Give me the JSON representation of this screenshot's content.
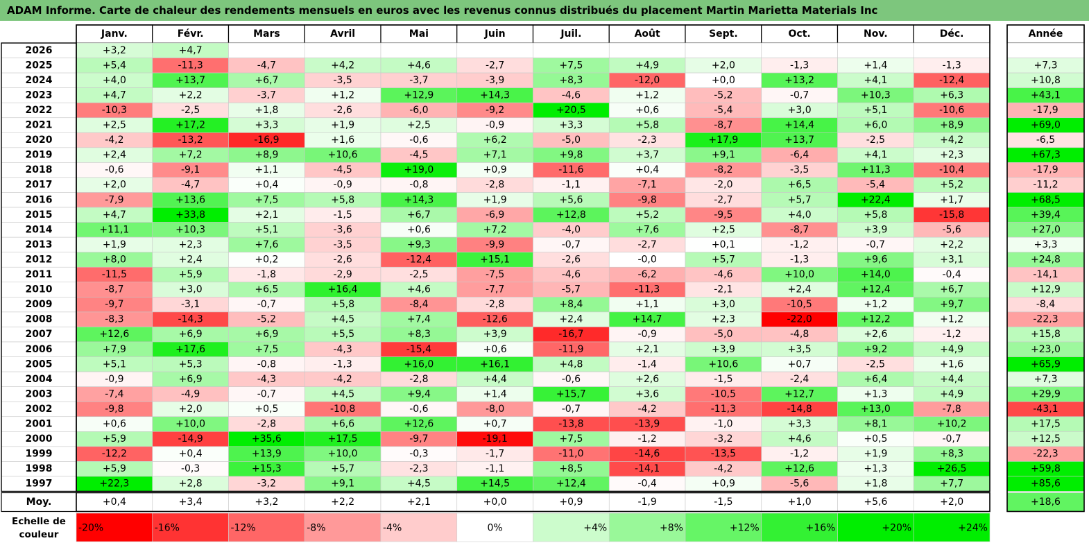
{
  "title": "ADAM Informe. Carte de chaleur des rendements mensuels en euros avec les revenus connus distribués du placement Martin Marietta Materials Inc",
  "colors": {
    "title_bg": "#7dc67d",
    "negative_max": "#ff0000",
    "zero": "#ffffff",
    "positive_max": "#00ee00"
  },
  "chart_data": {
    "type": "heatmap",
    "title": "ADAM Informe. Carte de chaleur des rendements mensuels en euros avec les revenus connus distribués du placement Martin Marietta Materials Inc",
    "columns": [
      "Janv.",
      "Févr.",
      "Mars",
      "Avril",
      "Mai",
      "Juin",
      "Juil.",
      "Août",
      "Sept.",
      "Oct.",
      "Nov.",
      "Déc."
    ],
    "year_column": "Année",
    "rows": [
      {
        "label": "2026",
        "values": [
          "+3,2",
          "+4,7",
          "",
          "",
          "",
          "",
          "",
          "",
          "",
          "",
          "",
          ""
        ],
        "year": ""
      },
      {
        "label": "2025",
        "values": [
          "+5,4",
          "-11,3",
          "-4,7",
          "+4,2",
          "+4,6",
          "-2,7",
          "+7,5",
          "+4,9",
          "+2,0",
          "-1,3",
          "+1,4",
          "-1,3"
        ],
        "year": "+7,3"
      },
      {
        "label": "2024",
        "values": [
          "+4,0",
          "+13,7",
          "+6,7",
          "-3,5",
          "-3,7",
          "-3,9",
          "+8,3",
          "-12,0",
          "+0,0",
          "+13,2",
          "+4,1",
          "-12,4"
        ],
        "year": "+10,8"
      },
      {
        "label": "2023",
        "values": [
          "+4,7",
          "+2,2",
          "-3,7",
          "+1,2",
          "+12,9",
          "+14,3",
          "-4,6",
          "+1,2",
          "-5,2",
          "-0,7",
          "+10,3",
          "+6,3"
        ],
        "year": "+43,1"
      },
      {
        "label": "2022",
        "values": [
          "-10,3",
          "-2,5",
          "+1,8",
          "-2,6",
          "-6,0",
          "-9,2",
          "+20,5",
          "+0,6",
          "-5,4",
          "+3,0",
          "+5,1",
          "-10,6"
        ],
        "year": "-17,9"
      },
      {
        "label": "2021",
        "values": [
          "+2,5",
          "+17,2",
          "+3,3",
          "+1,9",
          "+2,5",
          "-0,9",
          "+3,3",
          "+5,8",
          "-8,7",
          "+14,4",
          "+6,0",
          "+8,9"
        ],
        "year": "+69,0"
      },
      {
        "label": "2020",
        "values": [
          "-4,2",
          "-13,2",
          "-16,9",
          "+1,6",
          "-0,6",
          "+6,2",
          "-5,0",
          "-2,3",
          "+17,9",
          "+13,7",
          "-2,5",
          "+4,2"
        ],
        "year": "-6,5"
      },
      {
        "label": "2019",
        "values": [
          "+2,4",
          "+7,2",
          "+8,9",
          "+10,6",
          "-4,5",
          "+7,1",
          "+9,8",
          "+3,7",
          "+9,1",
          "-6,4",
          "+4,1",
          "+2,3"
        ],
        "year": "+67,3"
      },
      {
        "label": "2018",
        "values": [
          "-0,6",
          "-9,1",
          "+1,1",
          "-4,5",
          "+19,0",
          "+0,9",
          "-11,6",
          "+0,4",
          "-8,2",
          "-3,5",
          "+11,3",
          "-10,4"
        ],
        "year": "-17,9"
      },
      {
        "label": "2017",
        "values": [
          "+2,0",
          "-4,7",
          "+0,4",
          "-0,9",
          "-0,8",
          "-2,8",
          "-1,1",
          "-7,1",
          "-2,0",
          "+6,5",
          "-5,4",
          "+5,2"
        ],
        "year": "-11,2"
      },
      {
        "label": "2016",
        "values": [
          "-7,9",
          "+13,6",
          "+7,5",
          "+5,8",
          "+14,3",
          "+1,9",
          "+5,6",
          "-9,8",
          "-2,7",
          "+5,7",
          "+22,4",
          "+1,7"
        ],
        "year": "+68,5"
      },
      {
        "label": "2015",
        "values": [
          "+4,7",
          "+33,8",
          "+2,1",
          "-1,5",
          "+6,7",
          "-6,9",
          "+12,8",
          "+5,2",
          "-9,5",
          "+4,0",
          "+5,8",
          "-15,8"
        ],
        "year": "+39,4"
      },
      {
        "label": "2014",
        "values": [
          "+11,1",
          "+10,3",
          "+5,1",
          "-3,6",
          "+0,6",
          "+7,2",
          "-4,0",
          "+7,6",
          "+2,5",
          "-8,7",
          "+3,9",
          "-5,6"
        ],
        "year": "+27,0"
      },
      {
        "label": "2013",
        "values": [
          "+1,9",
          "+2,3",
          "+7,6",
          "-3,5",
          "+9,3",
          "-9,9",
          "-0,7",
          "-2,7",
          "+0,1",
          "-1,2",
          "-0,7",
          "+2,2"
        ],
        "year": "+3,3"
      },
      {
        "label": "2012",
        "values": [
          "+8,0",
          "+2,4",
          "+0,2",
          "-2,6",
          "-12,4",
          "+15,1",
          "-2,6",
          "-0,0",
          "+5,7",
          "-1,3",
          "+9,6",
          "+3,1"
        ],
        "year": "+24,8"
      },
      {
        "label": "2011",
        "values": [
          "-11,5",
          "+5,9",
          "-1,8",
          "-2,9",
          "-2,5",
          "-7,5",
          "-4,6",
          "-6,2",
          "-4,6",
          "+10,0",
          "+14,0",
          "-0,4"
        ],
        "year": "-14,1"
      },
      {
        "label": "2010",
        "values": [
          "-8,7",
          "+3,0",
          "+6,5",
          "+16,4",
          "+4,6",
          "-7,7",
          "-5,7",
          "-11,3",
          "-2,1",
          "+2,4",
          "+12,4",
          "+6,7"
        ],
        "year": "+12,9"
      },
      {
        "label": "2009",
        "values": [
          "-9,7",
          "-3,1",
          "-0,7",
          "+5,8",
          "-8,4",
          "-2,8",
          "+8,4",
          "+1,1",
          "+3,0",
          "-10,5",
          "+1,2",
          "+9,7"
        ],
        "year": "-8,4"
      },
      {
        "label": "2008",
        "values": [
          "-8,3",
          "-14,3",
          "-5,2",
          "+4,5",
          "+7,4",
          "-12,6",
          "+2,4",
          "+14,7",
          "+2,3",
          "-22,0",
          "+12,2",
          "+1,2"
        ],
        "year": "-22,3"
      },
      {
        "label": "2007",
        "values": [
          "+12,6",
          "+6,9",
          "+6,9",
          "+5,5",
          "+8,3",
          "+3,9",
          "-16,7",
          "-0,9",
          "-5,0",
          "-4,8",
          "+2,6",
          "-1,2"
        ],
        "year": "+15,8"
      },
      {
        "label": "2006",
        "values": [
          "+7,9",
          "+17,6",
          "+7,5",
          "-4,3",
          "-15,4",
          "+0,6",
          "-11,9",
          "+2,1",
          "+3,9",
          "+3,5",
          "+9,2",
          "+4,9"
        ],
        "year": "+23,0"
      },
      {
        "label": "2005",
        "values": [
          "+5,1",
          "+5,3",
          "-0,8",
          "-1,3",
          "+16,0",
          "+16,1",
          "+4,8",
          "-1,4",
          "+10,6",
          "+0,7",
          "-2,5",
          "+1,6"
        ],
        "year": "+65,9"
      },
      {
        "label": "2004",
        "values": [
          "-0,9",
          "+6,9",
          "-4,3",
          "-4,2",
          "-2,8",
          "+4,4",
          "-0,6",
          "+2,6",
          "-1,5",
          "-2,4",
          "+6,4",
          "+4,4"
        ],
        "year": "+7,3"
      },
      {
        "label": "2003",
        "values": [
          "-7,4",
          "-4,9",
          "-0,7",
          "+4,5",
          "+9,4",
          "+1,4",
          "+15,7",
          "+3,6",
          "-10,5",
          "+12,7",
          "+1,3",
          "+4,9"
        ],
        "year": "+29,9"
      },
      {
        "label": "2002",
        "values": [
          "-9,8",
          "+2,0",
          "+0,5",
          "-10,8",
          "-0,6",
          "-8,0",
          "-0,7",
          "-4,2",
          "-11,3",
          "-14,8",
          "+13,0",
          "-7,8"
        ],
        "year": "-43,1"
      },
      {
        "label": "2001",
        "values": [
          "+0,6",
          "+10,0",
          "-2,8",
          "+6,6",
          "+12,6",
          "+0,7",
          "-13,8",
          "-13,9",
          "-1,0",
          "+3,3",
          "+8,1",
          "+10,2"
        ],
        "year": "+17,5"
      },
      {
        "label": "2000",
        "values": [
          "+5,9",
          "-14,9",
          "+35,6",
          "+17,5",
          "-9,7",
          "-19,1",
          "+7,5",
          "-1,2",
          "-3,2",
          "+4,6",
          "+0,5",
          "-0,7"
        ],
        "year": "+12,5"
      },
      {
        "label": "1999",
        "values": [
          "-12,2",
          "+0,4",
          "+13,9",
          "+10,0",
          "-0,3",
          "-1,7",
          "-11,0",
          "-14,6",
          "-13,5",
          "-1,2",
          "+1,9",
          "+8,3"
        ],
        "year": "-22,3"
      },
      {
        "label": "1998",
        "values": [
          "+5,9",
          "-0,3",
          "+15,3",
          "+5,7",
          "-2,3",
          "-1,1",
          "+8,5",
          "-14,1",
          "-4,2",
          "+12,6",
          "+1,3",
          "+26,5"
        ],
        "year": "+59,8"
      },
      {
        "label": "1997",
        "values": [
          "+22,3",
          "+2,8",
          "-3,2",
          "+9,1",
          "+4,5",
          "+14,5",
          "+12,4",
          "-0,4",
          "+0,9",
          "-5,6",
          "+1,8",
          "+7,7"
        ],
        "year": "+85,6"
      }
    ],
    "average": {
      "label": "Moy.",
      "values": [
        "+0,4",
        "+3,4",
        "+3,2",
        "+2,2",
        "+2,1",
        "+0,0",
        "+0,9",
        "-1,9",
        "-1,5",
        "+1,0",
        "+5,6",
        "+2,0"
      ],
      "year": "+18,6"
    },
    "scale": {
      "title_line1": "Echelle de",
      "title_line2": "couleur",
      "labels": [
        "-20%",
        "-16%",
        "-12%",
        "-8%",
        "-4%",
        "0%",
        "+4%",
        "+8%",
        "+12%",
        "+16%",
        "+20%",
        "+24%"
      ]
    }
  }
}
